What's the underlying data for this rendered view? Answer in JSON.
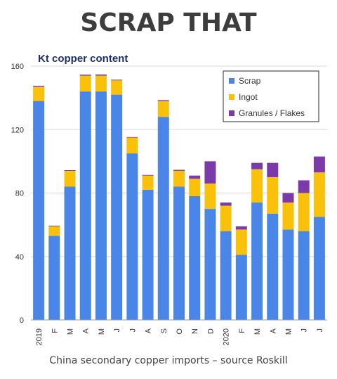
{
  "title": "SCRAP THAT",
  "caption": "China secondary copper imports – source Roskill",
  "chart_data": {
    "type": "bar",
    "stacked": true,
    "ylabel": "Kt copper content",
    "ylim": [
      0,
      160
    ],
    "yticks": [
      0,
      40,
      80,
      120,
      160
    ],
    "grid": true,
    "legend_position": "top-right",
    "categories": [
      "2019",
      "F",
      "M",
      "A",
      "M",
      "J",
      "J",
      "A",
      "S",
      "O",
      "N",
      "D",
      "2020",
      "F",
      "M",
      "A",
      "M",
      "J",
      "J"
    ],
    "series": [
      {
        "name": "Scrap",
        "color": "#4a86e8",
        "values": [
          138,
          53,
          84,
          144,
          144,
          142,
          105,
          82,
          128,
          84,
          78,
          70,
          56,
          41,
          74,
          67,
          57,
          56,
          65
        ]
      },
      {
        "name": "Ingot",
        "color": "#f9c10a",
        "values": [
          9,
          6,
          10,
          10,
          10,
          9,
          10,
          9,
          10,
          10,
          11,
          16,
          16,
          16,
          21,
          23,
          17,
          24,
          28
        ]
      },
      {
        "name": "Granules / Flakes",
        "color": "#7a3aa8",
        "values": [
          0.6,
          0.4,
          0.4,
          0.6,
          0.7,
          0.4,
          0.3,
          0.4,
          0.6,
          0.6,
          2,
          14,
          2,
          2,
          4,
          9,
          6,
          8,
          10
        ]
      }
    ]
  }
}
